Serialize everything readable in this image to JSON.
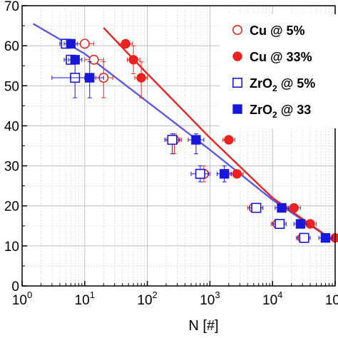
{
  "chart_data": {
    "type": "scatter",
    "xlabel": "N [#]",
    "ylabel": "",
    "x_scale": "log",
    "xlim": [
      1,
      100000
    ],
    "ylim": [
      0,
      70
    ],
    "x_ticks": [
      {
        "value": 1,
        "base": "10",
        "exp": "0"
      },
      {
        "value": 10,
        "base": "10",
        "exp": "1"
      },
      {
        "value": 100,
        "base": "10",
        "exp": "2"
      },
      {
        "value": 1000,
        "base": "10",
        "exp": "3"
      },
      {
        "value": 10000,
        "base": "10",
        "exp": "4"
      },
      {
        "value": 100000,
        "base": "10",
        "exp": "5"
      }
    ],
    "y_ticks": [
      {
        "value": 0,
        "label": "0"
      },
      {
        "value": 10,
        "label": "10"
      },
      {
        "value": 20,
        "label": "20"
      },
      {
        "value": 30,
        "label": "30"
      },
      {
        "value": 40,
        "label": "40"
      },
      {
        "value": 50,
        "label": "50"
      },
      {
        "value": 60,
        "label": "60"
      },
      {
        "value": 70,
        "label": "70"
      }
    ],
    "grid": true,
    "legend_position": "top-right",
    "series": [
      {
        "name": "Cu @ 5%",
        "name_main": "Cu @ 5%",
        "name_sub": "",
        "name_tail": "",
        "marker": "open-circle",
        "color": "#e8231f",
        "points": [
          {
            "x": 10,
            "y": 60.5,
            "xlo": 7,
            "xhi": 14
          },
          {
            "x": 14,
            "y": 56.5,
            "xlo": 10,
            "xhi": 20
          },
          {
            "x": 20,
            "y": 52,
            "xlo": 15,
            "xhi": 28,
            "ylo": 47,
            "yhi": 56
          },
          {
            "x": 270,
            "y": 36.5,
            "xlo": 200,
            "xhi": 350,
            "ylo": 33,
            "yhi": 38
          },
          {
            "x": 800,
            "y": 28,
            "xlo": 600,
            "xhi": 1000,
            "ylo": 26,
            "yhi": 30
          },
          {
            "x": 5000,
            "y": 19.5,
            "xlo": 4000,
            "xhi": 6000
          },
          {
            "x": 12000,
            "y": 15.5,
            "xlo": 9500,
            "xhi": 15000
          },
          {
            "x": 30000,
            "y": 12,
            "xlo": 24000,
            "xhi": 38000
          }
        ]
      },
      {
        "name": "Cu @ 33%",
        "name_main": "Cu @ 33",
        "name_sub": "",
        "name_tail": "%",
        "marker": "filled-circle",
        "color": "#e8231f",
        "points": [
          {
            "x": 45,
            "y": 60.5,
            "xlo": 35,
            "xhi": 58
          },
          {
            "x": 60,
            "y": 56.5,
            "xlo": 48,
            "xhi": 76,
            "ylo": 53,
            "yhi": 60
          },
          {
            "x": 80,
            "y": 52,
            "xlo": 63,
            "xhi": 100,
            "ylo": 47,
            "yhi": 56
          },
          {
            "x": 2000,
            "y": 36.5,
            "xlo": 1600,
            "xhi": 2500
          },
          {
            "x": 2700,
            "y": 28,
            "xlo": 2100,
            "xhi": 3400
          },
          {
            "x": 22000,
            "y": 19.5,
            "xlo": 17000,
            "xhi": 28000
          },
          {
            "x": 40000,
            "y": 15.5,
            "xlo": 31000,
            "xhi": 50000
          },
          {
            "x": 100000,
            "y": 12,
            "xlo": 80000,
            "xhi": 125000
          }
        ]
      },
      {
        "name": "ZrO2 @ 5%",
        "name_main": "ZrO",
        "name_sub": "2",
        "name_tail": " @ 5%",
        "marker": "open-square",
        "color": "#1818d8",
        "points": [
          {
            "x": 5,
            "y": 60.5,
            "xlo": 4,
            "xhi": 6.5
          },
          {
            "x": 6,
            "y": 56.5,
            "xlo": 4.7,
            "xhi": 7.6
          },
          {
            "x": 7,
            "y": 52,
            "xlo": 3,
            "xhi": 10,
            "ylo": 47,
            "yhi": 56
          },
          {
            "x": 250,
            "y": 36.5,
            "xlo": 190,
            "xhi": 330,
            "ylo": 33,
            "yhi": 38
          },
          {
            "x": 700,
            "y": 28,
            "xlo": 500,
            "xhi": 950,
            "ylo": 26,
            "yhi": 30
          },
          {
            "x": 5500,
            "y": 19.5,
            "xlo": 4300,
            "xhi": 7000
          },
          {
            "x": 13000,
            "y": 15.5,
            "xlo": 10000,
            "xhi": 16500
          },
          {
            "x": 32000,
            "y": 12,
            "xlo": 25000,
            "xhi": 40000
          }
        ]
      },
      {
        "name": "ZrO2 @ 33%",
        "name_main": "ZrO",
        "name_sub": "2",
        "name_tail": " @ 33",
        "marker": "filled-square",
        "color": "#1818d8",
        "points": [
          {
            "x": 6,
            "y": 60.5,
            "xlo": 4.7,
            "xhi": 7.6
          },
          {
            "x": 7,
            "y": 56.5,
            "xlo": 5.5,
            "xhi": 9
          },
          {
            "x": 12,
            "y": 52,
            "xlo": 6,
            "xhi": 20,
            "ylo": 47,
            "yhi": 56
          },
          {
            "x": 600,
            "y": 36.5,
            "xlo": 450,
            "xhi": 800,
            "ylo": 33,
            "yhi": 38
          },
          {
            "x": 1700,
            "y": 28,
            "xlo": 1300,
            "xhi": 2200,
            "ylo": 26,
            "yhi": 30
          },
          {
            "x": 14000,
            "y": 19.5,
            "xlo": 11000,
            "xhi": 18000
          },
          {
            "x": 28000,
            "y": 15.5,
            "xlo": 22000,
            "xhi": 35000
          },
          {
            "x": 70000,
            "y": 12,
            "xlo": 55000,
            "xhi": 90000
          }
        ]
      }
    ],
    "fits": [
      {
        "series": "ZrO2",
        "color": "#5a5ae6",
        "points": [
          [
            1.5,
            65.5
          ],
          [
            10,
            58
          ],
          [
            100,
            46
          ],
          [
            1000,
            34
          ],
          [
            10000,
            21.5
          ],
          [
            100000,
            11
          ]
        ]
      },
      {
        "series": "Cu",
        "color": "#e8231f",
        "points": [
          [
            20,
            64.5
          ],
          [
            100,
            53
          ],
          [
            1000,
            37
          ],
          [
            10000,
            22
          ],
          [
            100000,
            11
          ]
        ]
      }
    ]
  }
}
